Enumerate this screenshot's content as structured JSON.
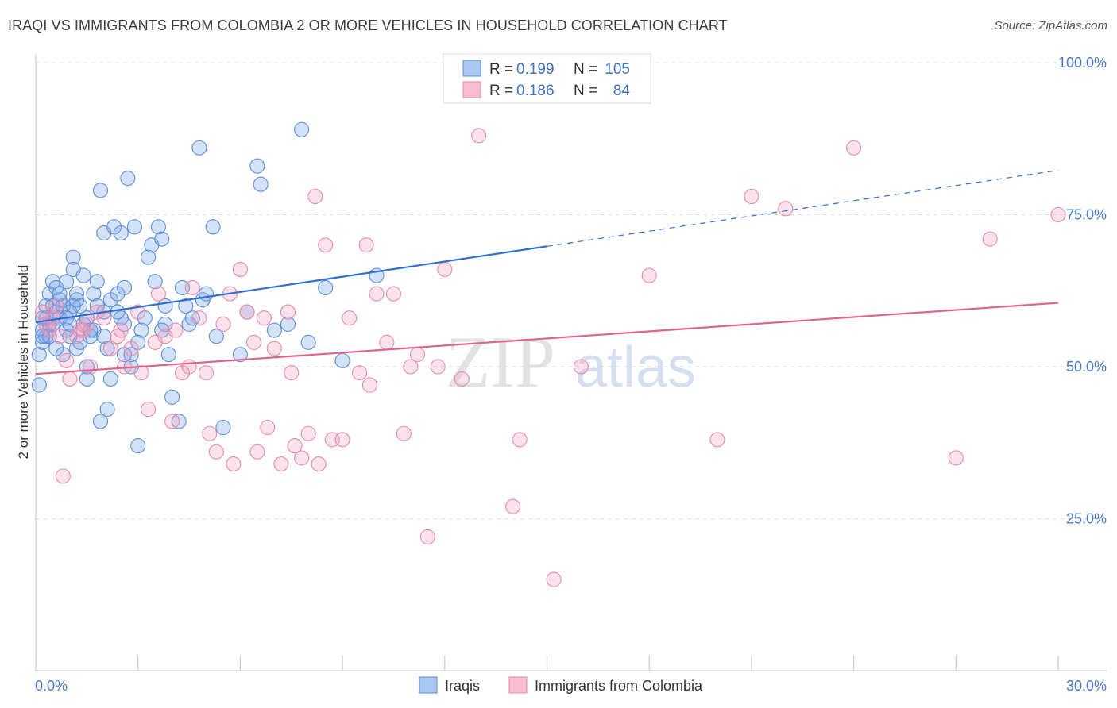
{
  "title": "IRAQI VS IMMIGRANTS FROM COLOMBIA 2 OR MORE VEHICLES IN HOUSEHOLD CORRELATION CHART",
  "source": "Source: ZipAtlas.com",
  "watermark": {
    "zip": "ZIP",
    "atlas": "atlas"
  },
  "colors": {
    "blue": "#5b8fd9",
    "blue_line": "#2f6fcf",
    "pink": "#e88aaa",
    "pink_line": "#e0638f",
    "axis_text": "#4a7ac7"
  },
  "legend_top": [
    {
      "r_label": "R =",
      "r_value": "0.199",
      "n_label": "N =",
      "n_value": "105"
    },
    {
      "r_label": "R =",
      "r_value": "0.186",
      "n_label": "N =",
      "n_value": "84"
    }
  ],
  "chart_data": {
    "type": "scatter",
    "title": "IRAQI VS IMMIGRANTS FROM COLOMBIA 2 OR MORE VEHICLES IN HOUSEHOLD CORRELATION CHART",
    "xlabel": "",
    "ylabel": "2 or more Vehicles in Household",
    "xlim": [
      0,
      30
    ],
    "ylim": [
      0,
      100
    ],
    "x_tick_labels": [
      "0.0%",
      "30.0%"
    ],
    "y_tick_labels": [
      "100.0%",
      "75.0%",
      "50.0%",
      "25.0%"
    ],
    "y_ticks": [
      100,
      75,
      50,
      25
    ],
    "grid": true,
    "legend_position": "bottom",
    "series": [
      {
        "name": "Iraqis",
        "color": "#5b8fd9",
        "trend": {
          "x": [
            0,
            15
          ],
          "y": [
            57.3,
            69.8
          ],
          "dashed_to": [
            30,
            82.3
          ]
        },
        "points": [
          [
            0.1,
            47
          ],
          [
            0.1,
            52
          ],
          [
            0.2,
            54
          ],
          [
            0.2,
            56
          ],
          [
            0.3,
            55
          ],
          [
            0.3,
            58
          ],
          [
            0.4,
            62
          ],
          [
            0.4,
            57
          ],
          [
            0.5,
            64
          ],
          [
            0.5,
            60
          ],
          [
            0.6,
            59
          ],
          [
            0.6,
            63
          ],
          [
            0.7,
            58
          ],
          [
            0.7,
            61
          ],
          [
            0.8,
            60
          ],
          [
            0.8,
            52
          ],
          [
            0.9,
            56
          ],
          [
            0.9,
            64
          ],
          [
            1.0,
            55
          ],
          [
            1.0,
            59
          ],
          [
            1.1,
            68
          ],
          [
            1.1,
            66
          ],
          [
            1.2,
            53
          ],
          [
            1.2,
            62
          ],
          [
            1.3,
            60
          ],
          [
            1.4,
            65
          ],
          [
            1.4,
            57
          ],
          [
            1.5,
            58
          ],
          [
            1.5,
            48
          ],
          [
            1.5,
            50
          ],
          [
            1.6,
            55
          ],
          [
            1.7,
            62
          ],
          [
            1.7,
            56
          ],
          [
            1.8,
            64
          ],
          [
            1.8,
            60
          ],
          [
            1.9,
            79
          ],
          [
            1.9,
            41
          ],
          [
            2.0,
            55
          ],
          [
            2.0,
            72
          ],
          [
            2.1,
            53
          ],
          [
            2.1,
            43
          ],
          [
            2.2,
            61
          ],
          [
            2.2,
            48
          ],
          [
            2.3,
            73
          ],
          [
            2.4,
            59
          ],
          [
            2.4,
            62
          ],
          [
            2.5,
            72
          ],
          [
            2.5,
            58
          ],
          [
            2.6,
            57
          ],
          [
            2.6,
            63
          ],
          [
            2.7,
            81
          ],
          [
            2.8,
            50
          ],
          [
            2.8,
            52
          ],
          [
            2.9,
            73
          ],
          [
            3.0,
            37
          ],
          [
            3.1,
            56
          ],
          [
            3.2,
            58
          ],
          [
            3.3,
            68
          ],
          [
            3.4,
            70
          ],
          [
            3.5,
            64
          ],
          [
            3.6,
            73
          ],
          [
            3.7,
            71
          ],
          [
            3.8,
            60
          ],
          [
            3.8,
            57
          ],
          [
            3.9,
            52
          ],
          [
            4.0,
            45
          ],
          [
            4.2,
            41
          ],
          [
            4.3,
            63
          ],
          [
            4.4,
            60
          ],
          [
            4.5,
            57
          ],
          [
            4.6,
            58
          ],
          [
            4.8,
            86
          ],
          [
            4.9,
            61
          ],
          [
            5.0,
            62
          ],
          [
            5.2,
            73
          ],
          [
            5.3,
            55
          ],
          [
            5.5,
            40
          ],
          [
            6.0,
            52
          ],
          [
            6.2,
            59
          ],
          [
            6.5,
            83
          ],
          [
            6.6,
            80
          ],
          [
            7.0,
            56
          ],
          [
            7.4,
            57
          ],
          [
            7.8,
            89
          ],
          [
            8.0,
            54
          ],
          [
            8.5,
            63
          ],
          [
            9.0,
            51
          ],
          [
            10.0,
            65
          ],
          [
            0.2,
            58
          ],
          [
            0.4,
            55
          ],
          [
            0.6,
            53
          ],
          [
            1.0,
            57
          ],
          [
            1.3,
            54
          ],
          [
            0.3,
            60
          ],
          [
            2.0,
            59
          ],
          [
            3.0,
            54
          ],
          [
            0.5,
            57
          ],
          [
            1.6,
            56
          ],
          [
            1.2,
            61
          ],
          [
            0.7,
            62
          ],
          [
            0.9,
            58
          ],
          [
            2.6,
            52
          ],
          [
            1.1,
            60
          ],
          [
            0.2,
            55
          ],
          [
            3.7,
            56
          ]
        ]
      },
      {
        "name": "Immigrants from Colombia",
        "color": "#e88aaa",
        "trend": {
          "x": [
            0,
            30
          ],
          "y": [
            48.8,
            60.5
          ]
        },
        "points": [
          [
            0.2,
            59
          ],
          [
            0.3,
            57
          ],
          [
            0.4,
            56
          ],
          [
            0.5,
            58
          ],
          [
            0.6,
            60
          ],
          [
            0.7,
            55
          ],
          [
            0.8,
            32
          ],
          [
            1.0,
            48
          ],
          [
            1.2,
            55
          ],
          [
            1.3,
            56
          ],
          [
            1.5,
            57
          ],
          [
            1.6,
            50
          ],
          [
            1.8,
            59
          ],
          [
            2.0,
            58
          ],
          [
            2.2,
            53
          ],
          [
            2.4,
            55
          ],
          [
            2.5,
            56
          ],
          [
            2.6,
            50
          ],
          [
            2.8,
            53
          ],
          [
            3.0,
            59
          ],
          [
            3.1,
            49
          ],
          [
            3.3,
            43
          ],
          [
            3.5,
            54
          ],
          [
            3.6,
            62
          ],
          [
            3.8,
            55
          ],
          [
            4.0,
            41
          ],
          [
            4.1,
            56
          ],
          [
            4.3,
            49
          ],
          [
            4.5,
            50
          ],
          [
            4.6,
            63
          ],
          [
            4.8,
            58
          ],
          [
            5.0,
            49
          ],
          [
            5.1,
            39
          ],
          [
            5.3,
            36
          ],
          [
            5.5,
            57
          ],
          [
            5.7,
            62
          ],
          [
            5.8,
            34
          ],
          [
            6.0,
            66
          ],
          [
            6.2,
            59
          ],
          [
            6.4,
            54
          ],
          [
            6.5,
            36
          ],
          [
            6.7,
            58
          ],
          [
            6.8,
            40
          ],
          [
            7.0,
            53
          ],
          [
            7.2,
            34
          ],
          [
            7.4,
            59
          ],
          [
            7.5,
            49
          ],
          [
            7.6,
            37
          ],
          [
            7.8,
            35
          ],
          [
            8.0,
            39
          ],
          [
            8.2,
            78
          ],
          [
            8.3,
            34
          ],
          [
            8.5,
            70
          ],
          [
            8.7,
            38
          ],
          [
            9.0,
            38
          ],
          [
            9.2,
            58
          ],
          [
            9.5,
            49
          ],
          [
            9.7,
            70
          ],
          [
            9.8,
            47
          ],
          [
            10.0,
            62
          ],
          [
            10.3,
            54
          ],
          [
            10.5,
            62
          ],
          [
            10.8,
            39
          ],
          [
            11.0,
            50
          ],
          [
            11.2,
            52
          ],
          [
            11.5,
            22
          ],
          [
            11.8,
            50
          ],
          [
            12.0,
            66
          ],
          [
            12.5,
            48
          ],
          [
            13.0,
            88
          ],
          [
            14.0,
            27
          ],
          [
            14.2,
            38
          ],
          [
            15.2,
            15
          ],
          [
            16.0,
            50
          ],
          [
            18.0,
            65
          ],
          [
            20.0,
            38
          ],
          [
            21.0,
            78
          ],
          [
            22.0,
            76
          ],
          [
            24.0,
            86
          ],
          [
            27.0,
            35
          ],
          [
            28.0,
            71
          ],
          [
            30.0,
            75
          ],
          [
            1.4,
            56
          ],
          [
            0.9,
            51
          ]
        ]
      }
    ]
  },
  "axis": {
    "ylabel": "2 or more Vehicles in Household",
    "x_left": "0.0%",
    "x_right": "30.0%"
  },
  "legend_bottom": [
    {
      "label": "Iraqis"
    },
    {
      "label": "Immigrants from Colombia"
    }
  ]
}
